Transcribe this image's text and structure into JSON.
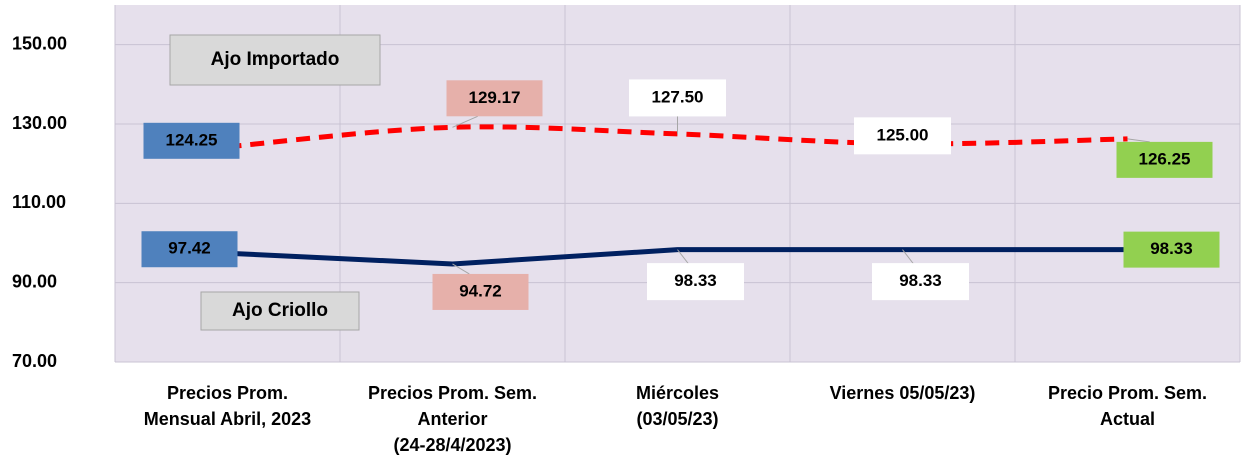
{
  "chart_data": {
    "type": "line",
    "categories": [
      "Precios Prom.\nMensual Abril, 2023",
      "Precios Prom. Sem.\nAnterior\n(24-28/4/2023)",
      "Miércoles\n(03/05/23)",
      "Viernes  05/05/23)",
      "Precio Prom. Sem.\nActual"
    ],
    "series": [
      {
        "name": "Ajo Importado",
        "color": "#ff0000",
        "dashed": true,
        "smooth": true,
        "values": [
          124.25,
          129.17,
          127.5,
          125.0,
          126.25
        ],
        "value_labels": [
          "124.25",
          "129.17",
          "127.50",
          "125.00",
          "126.25"
        ]
      },
      {
        "name": "Ajo Criollo",
        "color": "#002060",
        "dashed": false,
        "smooth": false,
        "values": [
          97.42,
          94.72,
          98.33,
          98.33,
          98.33
        ],
        "value_labels": [
          "97.42",
          "94.72",
          "98.33",
          "98.33",
          "98.33"
        ]
      }
    ],
    "label_colors": [
      "#4f81bd",
      "#e6b0aa",
      "#ffffff",
      "#ffffff",
      "#92d050"
    ],
    "ylim": [
      70,
      160
    ],
    "yticks": [
      {
        "value": 70,
        "label": "70.00"
      },
      {
        "value": 90,
        "label": "90.00"
      },
      {
        "value": 110,
        "label": "110.00"
      },
      {
        "value": 130,
        "label": "130.00"
      },
      {
        "value": 150,
        "label": "150.00"
      }
    ],
    "grid": true
  }
}
